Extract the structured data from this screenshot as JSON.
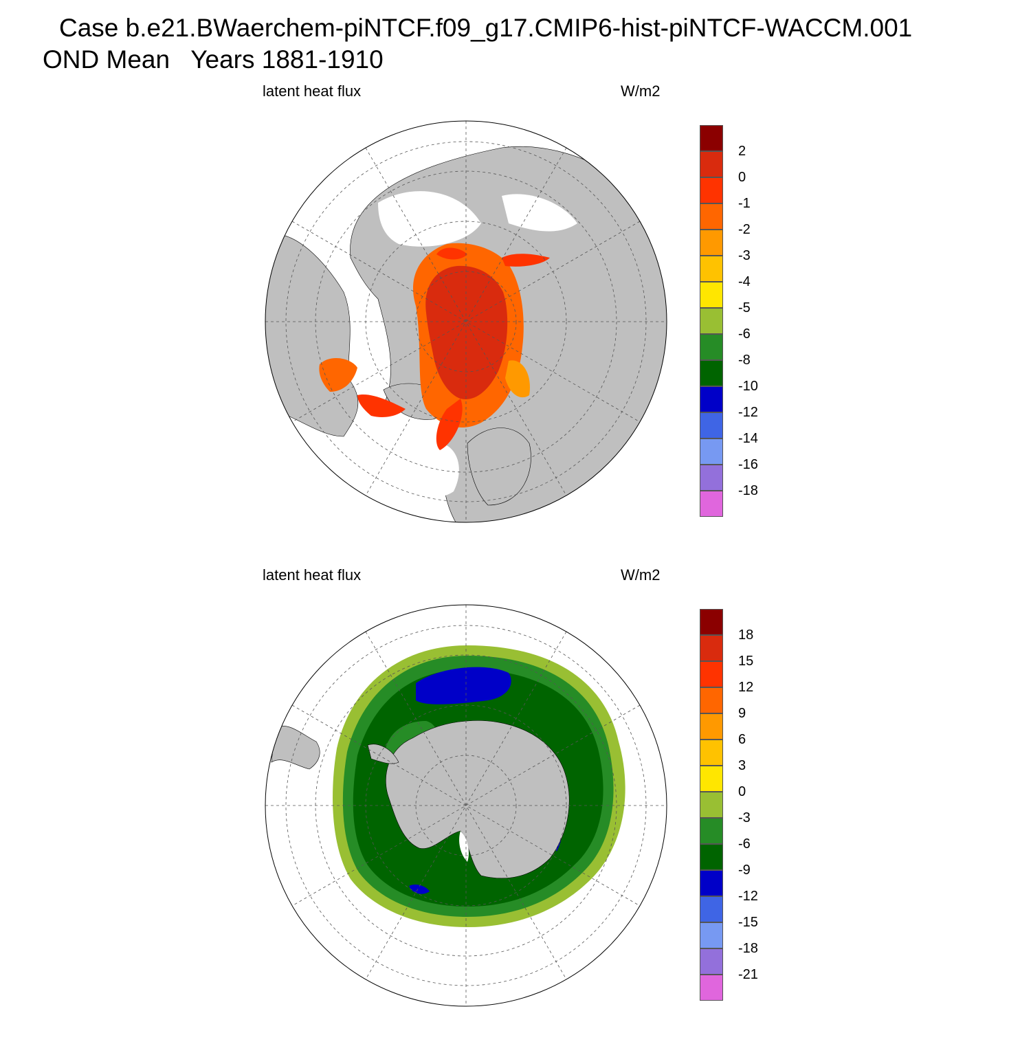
{
  "title": {
    "line1": "Case b.e21.BWaerchem-piNTCF.f09_g17.CMIP6-hist-piNTCF-WACCM.001",
    "line2": "OND Mean   Years 1881-1910"
  },
  "panels": [
    {
      "variable": "latent heat flux",
      "units": "W/m2",
      "hemisphere": "north",
      "colorbar": {
        "colors": [
          "#8b0000",
          "#d92b0e",
          "#ff3300",
          "#ff6600",
          "#ff9900",
          "#ffc200",
          "#ffe600",
          "#99bf33",
          "#268c26",
          "#006400",
          "#0000c8",
          "#3f65e5",
          "#7799f2",
          "#9370db",
          "#e066dd"
        ],
        "labels": [
          "2",
          "0",
          "-1",
          "-2",
          "-3",
          "-4",
          "-5",
          "-6",
          "-8",
          "-10",
          "-12",
          "-14",
          "-16",
          "-18"
        ]
      }
    },
    {
      "variable": "latent heat flux",
      "units": "W/m2",
      "hemisphere": "south",
      "colorbar": {
        "colors": [
          "#8b0000",
          "#d92b0e",
          "#ff3300",
          "#ff6600",
          "#ff9900",
          "#ffc200",
          "#ffe600",
          "#99bf33",
          "#268c26",
          "#006400",
          "#0000c8",
          "#3f65e5",
          "#7799f2",
          "#9370db",
          "#e066dd"
        ],
        "labels": [
          "18",
          "15",
          "12",
          "9",
          "6",
          "3",
          "0",
          "-3",
          "-6",
          "-9",
          "-12",
          "-15",
          "-18",
          "-21"
        ]
      }
    }
  ],
  "map_style": {
    "land": "#bfbfbf",
    "ocean_missing": "#ffffff",
    "grid_line": "#555555"
  }
}
